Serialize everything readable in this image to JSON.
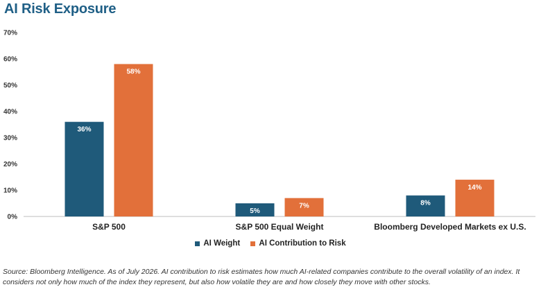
{
  "title": "AI Risk Exposure",
  "chart_data": {
    "type": "bar",
    "categories": [
      "S&P 500",
      "S&P 500 Equal Weight",
      "Bloomberg Developed Markets ex U.S."
    ],
    "series": [
      {
        "name": "AI Weight",
        "values": [
          36,
          5,
          8
        ],
        "labels": [
          "36%",
          "5%",
          "8%"
        ],
        "color": "#1f5a7a"
      },
      {
        "name": "AI Contribution to Risk",
        "values": [
          58,
          7,
          14
        ],
        "labels": [
          "58%",
          "7%",
          "14%"
        ],
        "color": "#e2703a"
      }
    ],
    "yticks": [
      "0%",
      "10%",
      "20%",
      "30%",
      "40%",
      "50%",
      "60%",
      "70%"
    ],
    "ylim": [
      0,
      70
    ],
    "grid": false,
    "legend_position": "bottom"
  },
  "source": "Source:  Bloomberg Intelligence. As of July 2026. AI contribution to risk estimates how much AI-related companies contribute to the overall volatility of an index. It considers not only how much of the index they represent, but also how volatile they are and how closely they move with other stocks."
}
